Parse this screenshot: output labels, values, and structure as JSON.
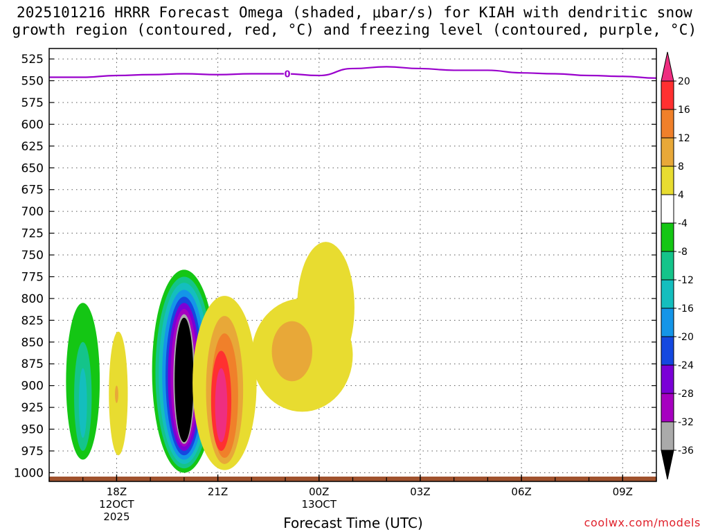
{
  "chart_data": {
    "type": "contour",
    "title": "2025101216 HRRR Forecast Omega (shaded, μbar/s) for KIAH with dendritic snow\ngrowth region (contoured, red, °C) and freezing level (contoured, purple, °C)",
    "xlabel": "Forecast Time (UTC)",
    "ylabel": "",
    "y_ticks": [
      525,
      550,
      575,
      600,
      625,
      650,
      675,
      700,
      725,
      750,
      775,
      800,
      825,
      850,
      875,
      900,
      925,
      950,
      975,
      1000
    ],
    "y_range": [
      513,
      1010
    ],
    "x_range_hours": [
      16,
      34
    ],
    "x_ticks": [
      {
        "hour": 18,
        "label": "18Z",
        "sub": [
          "12OCT",
          "2025"
        ]
      },
      {
        "hour": 21,
        "label": "21Z",
        "sub": []
      },
      {
        "hour": 24,
        "label": "00Z",
        "sub": [
          "13OCT"
        ]
      },
      {
        "hour": 27,
        "label": "03Z",
        "sub": []
      },
      {
        "hour": 30,
        "label": "06Z",
        "sub": []
      },
      {
        "hour": 33,
        "label": "09Z",
        "sub": []
      }
    ],
    "freezing_level": {
      "color": "#9900cc",
      "label": "0",
      "label_hour": 23,
      "points": [
        [
          16,
          546
        ],
        [
          17,
          546
        ],
        [
          18,
          544
        ],
        [
          19,
          543
        ],
        [
          20,
          542
        ],
        [
          21,
          543
        ],
        [
          22,
          542
        ],
        [
          23,
          542
        ],
        [
          24,
          544
        ],
        [
          25,
          536
        ],
        [
          26,
          534
        ],
        [
          27,
          536
        ],
        [
          28,
          538
        ],
        [
          29,
          538
        ],
        [
          30,
          541
        ],
        [
          31,
          542
        ],
        [
          32,
          544
        ],
        [
          33,
          545
        ],
        [
          34,
          547
        ]
      ]
    },
    "colorbar": {
      "labels": [
        "20",
        "16",
        "12",
        "8",
        "4",
        "-4",
        "-8",
        "-12",
        "-16",
        "-20",
        "-24",
        "-28",
        "-32",
        "-36"
      ],
      "colors": [
        "#ee2e80",
        "#ff3030",
        "#f0802a",
        "#e8a838",
        "#e8dc30",
        "#ffffff",
        "#14c614",
        "#14c48a",
        "#14bebe",
        "#1495e8",
        "#1448e0",
        "#7a00d6",
        "#a600c0",
        "#aaaaaa",
        "#000000"
      ]
    },
    "color_legend": {
      "ground": "#a0522d",
      "positive_pink": "#ee2e80",
      "positive_red": "#ff3030",
      "positive_orange": "#f0802a",
      "positive_amber": "#e8a838",
      "positive_yellow": "#e8dc30",
      "neg_green": "#14c614",
      "neg_seagreen": "#14c48a",
      "neg_cyan": "#14bebe",
      "neg_lightblue": "#1495e8",
      "neg_blue": "#1448e0",
      "neg_purple": "#7a00d6",
      "neg_magenta": "#a600c0",
      "neg_gray": "#aaaaaa",
      "neg_black": "#000000"
    },
    "regions": [
      {
        "color": "#14c614",
        "center": [
          17.0,
          900
        ],
        "hw": 0.5,
        "top": 805,
        "bot": 985
      },
      {
        "color": "#14c48a",
        "center": [
          17.0,
          915
        ],
        "hw": 0.26,
        "top": 850,
        "bot": 975
      },
      {
        "color": "#14bebe",
        "center": [
          17.0,
          925
        ],
        "hw": 0.12,
        "top": 880,
        "bot": 960
      },
      {
        "color": "#e8dc30",
        "center": [
          18.05,
          905
        ],
        "hw": 0.28,
        "top": 838,
        "bot": 980
      },
      {
        "color": "#e8a838",
        "center": [
          18.0,
          910
        ],
        "hw": 0.05,
        "top": 900,
        "bot": 920
      },
      {
        "color": "#14c614",
        "center": [
          20.0,
          885
        ],
        "hw": 0.95,
        "top": 767,
        "bot": 1000
      },
      {
        "color": "#14c48a",
        "center": [
          20.0,
          885
        ],
        "hw": 0.85,
        "top": 775,
        "bot": 995
      },
      {
        "color": "#14bebe",
        "center": [
          20.0,
          885
        ],
        "hw": 0.75,
        "top": 782,
        "bot": 990
      },
      {
        "color": "#1495e8",
        "center": [
          20.0,
          885
        ],
        "hw": 0.65,
        "top": 790,
        "bot": 985
      },
      {
        "color": "#1448e0",
        "center": [
          20.0,
          890
        ],
        "hw": 0.55,
        "top": 798,
        "bot": 980
      },
      {
        "color": "#7a00d6",
        "center": [
          20.0,
          890
        ],
        "hw": 0.48,
        "top": 805,
        "bot": 975
      },
      {
        "color": "#a600c0",
        "center": [
          20.0,
          895
        ],
        "hw": 0.4,
        "top": 812,
        "bot": 970
      },
      {
        "color": "#aaaaaa",
        "center": [
          20.0,
          895
        ],
        "hw": 0.32,
        "top": 818,
        "bot": 967
      },
      {
        "color": "#000000",
        "center": [
          20.0,
          895
        ],
        "hw": 0.28,
        "top": 822,
        "bot": 965
      },
      {
        "color": "#e8dc30",
        "center": [
          21.2,
          895
        ],
        "hw": 0.95,
        "top": 797,
        "bot": 997
      },
      {
        "color": "#e8a838",
        "center": [
          21.2,
          900
        ],
        "hw": 0.55,
        "top": 820,
        "bot": 990
      },
      {
        "color": "#f0802a",
        "center": [
          21.2,
          905
        ],
        "hw": 0.4,
        "top": 840,
        "bot": 983
      },
      {
        "color": "#ff3030",
        "center": [
          21.1,
          910
        ],
        "hw": 0.3,
        "top": 860,
        "bot": 975
      },
      {
        "color": "#ee2e80",
        "center": [
          21.1,
          915
        ],
        "hw": 0.18,
        "top": 880,
        "bot": 965
      },
      {
        "color": "#e8dc30",
        "center": [
          23.5,
          860
        ],
        "hw": 1.5,
        "top": 800,
        "bot": 930
      },
      {
        "color": "#e8dc30",
        "center": [
          24.2,
          800
        ],
        "hw": 0.85,
        "top": 735,
        "bot": 885
      },
      {
        "color": "#e8a838",
        "center": [
          23.2,
          860
        ],
        "hw": 0.6,
        "top": 826,
        "bot": 895
      }
    ]
  }
}
